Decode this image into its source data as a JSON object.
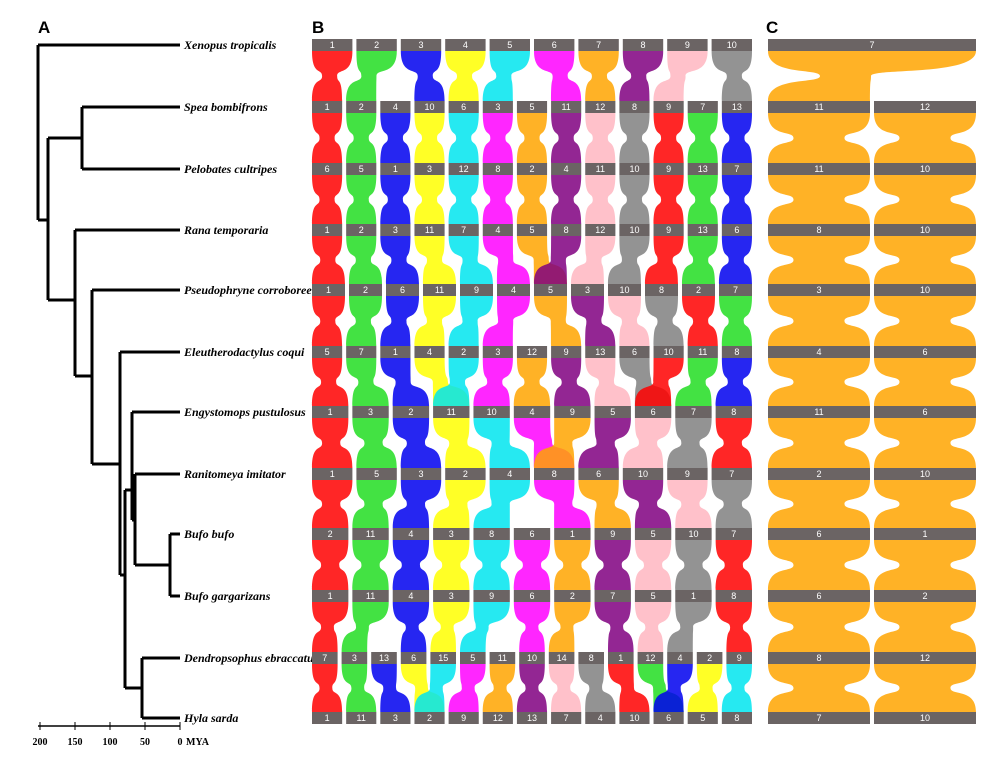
{
  "panels": {
    "a": "A",
    "b": "B",
    "c": "C"
  },
  "species": [
    "Xenopus tropicalis",
    "Spea bombifrons",
    "Pelobates cultripes",
    "Rana temporaria",
    "Pseudophryne corroboree",
    "Eleutherodactylus coqui",
    "Engystomops pustulosus",
    "Ranitomeya imitator",
    "Bufo bufo",
    "Bufo gargarizans",
    "Dendropsophus ebraccatus",
    "Hyla sarda"
  ],
  "time_axis": {
    "ticks": [
      "200",
      "150",
      "100",
      "50",
      "0"
    ],
    "unit": "MYA"
  },
  "panel_b_rows": [
    [
      "1",
      "2",
      "3",
      "4",
      "5",
      "6",
      "7",
      "8",
      "9",
      "10"
    ],
    [
      "1",
      "2",
      "4",
      "10",
      "6",
      "3",
      "5",
      "11",
      "12",
      "8",
      "9",
      "7",
      "13"
    ],
    [
      "6",
      "5",
      "1",
      "3",
      "12",
      "8",
      "2",
      "4",
      "11",
      "10",
      "9",
      "13",
      "7"
    ],
    [
      "1",
      "2",
      "3",
      "11",
      "7",
      "4",
      "5",
      "8",
      "12",
      "10",
      "9",
      "13",
      "6"
    ],
    [
      "1",
      "2",
      "6",
      "11",
      "9",
      "4",
      "5",
      "3",
      "10",
      "8",
      "2",
      "7"
    ],
    [
      "5",
      "7",
      "1",
      "4",
      "2",
      "3",
      "12",
      "9",
      "13",
      "6",
      "10",
      "11",
      "8"
    ],
    [
      "1",
      "3",
      "2",
      "11",
      "10",
      "4",
      "9",
      "5",
      "6",
      "7",
      "8"
    ],
    [
      "1",
      "5",
      "3",
      "2",
      "4",
      "8",
      "6",
      "10",
      "9",
      "7"
    ],
    [
      "2",
      "11",
      "4",
      "3",
      "8",
      "6",
      "1",
      "9",
      "5",
      "10",
      "7"
    ],
    [
      "1",
      "11",
      "4",
      "3",
      "9",
      "6",
      "2",
      "7",
      "5",
      "1",
      "8"
    ],
    [
      "7",
      "3",
      "13",
      "6",
      "15",
      "5",
      "11",
      "10",
      "14",
      "8",
      "1",
      "12",
      "4",
      "2",
      "9"
    ],
    [
      "1",
      "11",
      "3",
      "2",
      "9",
      "12",
      "13",
      "7",
      "4",
      "10",
      "6",
      "5",
      "8"
    ]
  ],
  "panel_c_rows": [
    [
      "7"
    ],
    [
      "11",
      "12"
    ],
    [
      "11",
      "10"
    ],
    [
      "8",
      "10"
    ],
    [
      "3",
      "10"
    ],
    [
      "4",
      "6"
    ],
    [
      "11",
      "6"
    ],
    [
      "2",
      "10"
    ],
    [
      "6",
      "1"
    ],
    [
      "6",
      "2"
    ],
    [
      "8",
      "12"
    ],
    [
      "7",
      "10"
    ]
  ]
}
